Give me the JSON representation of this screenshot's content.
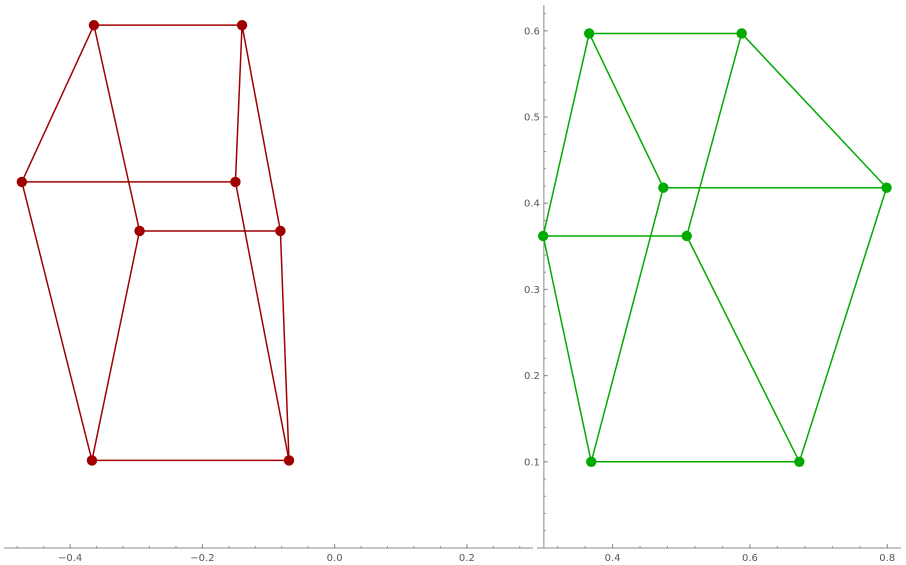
{
  "chart_data": [
    {
      "type": "scatter",
      "color": "#a00000",
      "xlim": [
        -0.5,
        0.3
      ],
      "ylim": [
        0.0,
        0.62
      ],
      "xticks": [
        -0.4,
        -0.2,
        0.0,
        0.2
      ],
      "xtick_labels": [
        "−0.4",
        "−0.2",
        "0.0",
        "0.2"
      ],
      "yticks": [],
      "ytick_labels": [],
      "grid": false,
      "points": [
        [
          -0.364,
          0.597
        ],
        [
          -0.14,
          0.597
        ],
        [
          -0.473,
          0.418
        ],
        [
          -0.15,
          0.418
        ],
        [
          -0.295,
          0.362
        ],
        [
          -0.082,
          0.362
        ],
        [
          -0.367,
          0.1
        ],
        [
          -0.069,
          0.1
        ]
      ],
      "edges": [
        [
          0,
          1
        ],
        [
          0,
          2
        ],
        [
          0,
          4
        ],
        [
          1,
          3
        ],
        [
          1,
          5
        ],
        [
          2,
          3
        ],
        [
          2,
          6
        ],
        [
          3,
          7
        ],
        [
          4,
          5
        ],
        [
          4,
          6
        ],
        [
          5,
          7
        ],
        [
          6,
          7
        ]
      ]
    },
    {
      "type": "scatter",
      "color": "#00aa00",
      "xlim": [
        0.29,
        0.82
      ],
      "ylim": [
        0.0,
        0.63
      ],
      "xticks": [
        0.4,
        0.6,
        0.8
      ],
      "xtick_labels": [
        "0.4",
        "0.6",
        "0.8"
      ],
      "yticks": [
        0.1,
        0.2,
        0.3,
        0.4,
        0.5,
        0.6
      ],
      "ytick_labels": [
        "0.1",
        "0.2",
        "0.3",
        "0.4",
        "0.5",
        "0.6"
      ],
      "grid": false,
      "points": [
        [
          0.366,
          0.597
        ],
        [
          0.588,
          0.597
        ],
        [
          0.474,
          0.418
        ],
        [
          0.799,
          0.418
        ],
        [
          0.299,
          0.362
        ],
        [
          0.508,
          0.362
        ],
        [
          0.369,
          0.1
        ],
        [
          0.672,
          0.1
        ]
      ],
      "edges": [
        [
          0,
          1
        ],
        [
          0,
          2
        ],
        [
          0,
          4
        ],
        [
          1,
          3
        ],
        [
          1,
          5
        ],
        [
          2,
          3
        ],
        [
          2,
          6
        ],
        [
          3,
          7
        ],
        [
          4,
          5
        ],
        [
          4,
          6
        ],
        [
          5,
          7
        ],
        [
          6,
          7
        ]
      ]
    }
  ]
}
